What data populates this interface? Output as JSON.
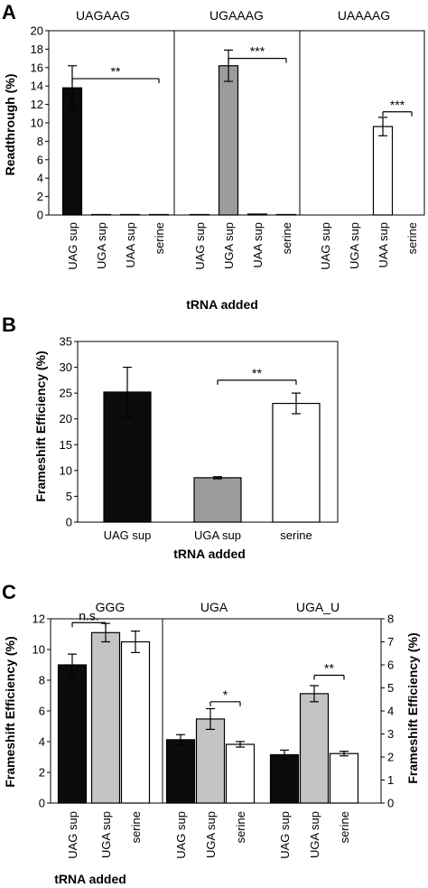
{
  "colors": {
    "uag_bar": "#0b0b0b",
    "uga_bar": "#9c9c9c",
    "white_bar": "#ffffff",
    "c_uga_bar": "#c4c4c4",
    "axis": "#000000"
  },
  "panels": {
    "A": {
      "letter": "A"
    },
    "B": {
      "letter": "B"
    },
    "C": {
      "letter": "C"
    }
  },
  "chart_data": [
    {
      "id": "A",
      "type": "bar",
      "ylabel": "Readthrough (%)",
      "xlabel": "tRNA added",
      "ylim": [
        0,
        20
      ],
      "yticks": [
        "0",
        "2",
        "4",
        "6",
        "8",
        "10",
        "12",
        "14",
        "16",
        "18",
        "20"
      ],
      "categories": [
        "UAG sup",
        "UGA sup",
        "UAA sup",
        "serine"
      ],
      "subpanels": [
        {
          "title": "UAGAAG",
          "values": [
            13.8,
            0.05,
            0.05,
            0.05
          ],
          "errors": [
            2.4,
            0,
            0,
            0
          ],
          "bar_colors": [
            "uag_bar",
            "white_bar",
            "white_bar",
            "white_bar"
          ],
          "sig": {
            "label": "**",
            "from": 0,
            "to": 3,
            "y": 14.8
          }
        },
        {
          "title": "UGAAAG",
          "values": [
            0.05,
            16.2,
            0.1,
            0.05
          ],
          "errors": [
            0,
            1.7,
            0,
            0
          ],
          "bar_colors": [
            "white_bar",
            "uga_bar",
            "white_bar",
            "white_bar"
          ],
          "sig": {
            "label": "***",
            "from": 1,
            "to": 3,
            "y": 17.0
          }
        },
        {
          "title": "UAAAAG",
          "values": [
            0,
            0,
            9.6,
            0
          ],
          "errors": [
            0,
            0,
            1.0,
            0
          ],
          "bar_colors": [
            "white_bar",
            "white_bar",
            "white_bar",
            "white_bar"
          ],
          "sig": {
            "label": "***",
            "from": 2,
            "to": 3,
            "y": 11.2
          }
        }
      ]
    },
    {
      "id": "B",
      "type": "bar",
      "ylabel": "Frameshift Efficiency (%)",
      "xlabel": "tRNA added",
      "ylim": [
        0,
        35
      ],
      "yticks": [
        "0",
        "5",
        "10",
        "15",
        "20",
        "25",
        "30",
        "35"
      ],
      "categories": [
        "UAG sup",
        "UGA sup",
        "serine"
      ],
      "values": [
        25.2,
        8.6,
        23.0
      ],
      "errors": [
        4.8,
        0.2,
        2.0
      ],
      "bar_colors": [
        "uag_bar",
        "uga_bar",
        "white_bar"
      ],
      "sig": {
        "label": "**",
        "from": 1,
        "to": 2,
        "y": 27.5
      }
    },
    {
      "id": "C",
      "type": "bar",
      "ylabel": "Frameshift Efficiency (%)",
      "ylabel_right": "Frameshift Efficiency (%)",
      "xlabel": "tRNA added",
      "ylim_left": [
        0,
        12
      ],
      "yticks_left": [
        "0",
        "2",
        "4",
        "6",
        "8",
        "10",
        "12"
      ],
      "ylim_right": [
        0,
        8
      ],
      "yticks_right": [
        "0",
        "1",
        "2",
        "3",
        "4",
        "5",
        "6",
        "7",
        "8"
      ],
      "categories": [
        "UAG sup",
        "UGA sup",
        "serine"
      ],
      "subpanels": [
        {
          "title": "GGG",
          "axis": "left",
          "values": [
            9.0,
            11.1,
            10.5
          ],
          "errors": [
            0.7,
            0.6,
            0.7
          ],
          "bar_colors": [
            "uag_bar",
            "c_uga_bar",
            "white_bar"
          ],
          "sig": {
            "label": "n.s.",
            "from": 0,
            "to": 1,
            "y": 11.75
          }
        },
        {
          "title": "UGA",
          "axis": "right",
          "values": [
            2.75,
            3.65,
            2.55
          ],
          "errors": [
            0.22,
            0.45,
            0.12
          ],
          "bar_colors": [
            "uag_bar",
            "c_uga_bar",
            "white_bar"
          ],
          "sig": {
            "label": "*",
            "from": 1,
            "to": 2,
            "y": 4.4
          }
        },
        {
          "title": "UGA_U",
          "axis": "right",
          "values": [
            2.1,
            4.75,
            2.15
          ],
          "errors": [
            0.2,
            0.35,
            0.1
          ],
          "bar_colors": [
            "uag_bar",
            "c_uga_bar",
            "white_bar"
          ],
          "sig": {
            "label": "**",
            "from": 1,
            "to": 2,
            "y": 5.55
          }
        }
      ]
    }
  ]
}
